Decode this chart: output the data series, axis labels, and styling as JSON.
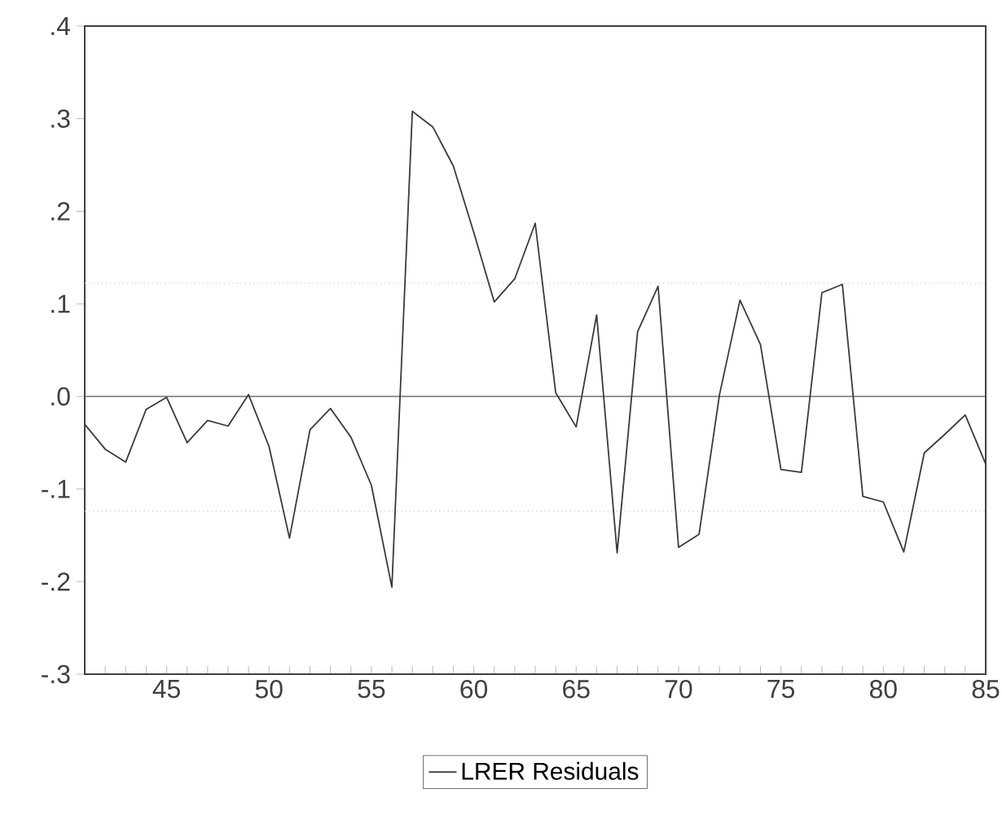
{
  "chart_data": {
    "type": "line",
    "x": [
      41,
      42,
      43,
      44,
      45,
      46,
      47,
      48,
      49,
      50,
      51,
      52,
      53,
      54,
      55,
      56,
      57,
      58,
      59,
      60,
      61,
      62,
      63,
      64,
      65,
      66,
      67,
      68,
      69,
      70,
      71,
      72,
      73,
      74,
      75,
      76,
      77,
      78,
      79,
      80,
      81,
      82,
      83,
      84,
      85
    ],
    "series": [
      {
        "name": "LRER Residuals",
        "color": "#3a3a3a",
        "values": [
          -0.03,
          -0.057,
          -0.071,
          -0.014,
          -0.001,
          -0.05,
          -0.026,
          -0.032,
          0.002,
          -0.054,
          -0.153,
          -0.036,
          -0.013,
          -0.044,
          -0.096,
          -0.206,
          0.308,
          0.291,
          0.249,
          0.177,
          0.102,
          0.127,
          0.187,
          0.004,
          -0.033,
          0.088,
          -0.169,
          0.07,
          0.119,
          -0.163,
          -0.149,
          0.002,
          0.104,
          0.056,
          -0.079,
          -0.082,
          0.112,
          0.121,
          -0.108,
          -0.114,
          -0.168,
          -0.061,
          -0.041,
          -0.02,
          -0.073
        ]
      }
    ],
    "xlim": [
      41,
      85
    ],
    "xticks": [
      {
        "value": 41,
        "label": null
      },
      {
        "value": 42,
        "label": null
      },
      {
        "value": 43,
        "label": null
      },
      {
        "value": 44,
        "label": null
      },
      45,
      {
        "value": 46,
        "label": null
      },
      {
        "value": 47,
        "label": null
      },
      {
        "value": 48,
        "label": null
      },
      {
        "value": 49,
        "label": null
      },
      50,
      {
        "value": 51,
        "label": null
      },
      {
        "value": 52,
        "label": null
      },
      {
        "value": 53,
        "label": null
      },
      {
        "value": 54,
        "label": null
      },
      55,
      {
        "value": 56,
        "label": null
      },
      {
        "value": 57,
        "label": null
      },
      {
        "value": 58,
        "label": null
      },
      {
        "value": 59,
        "label": null
      },
      60,
      {
        "value": 61,
        "label": null
      },
      {
        "value": 62,
        "label": null
      },
      {
        "value": 63,
        "label": null
      },
      {
        "value": 64,
        "label": null
      },
      65,
      {
        "value": 66,
        "label": null
      },
      {
        "value": 67,
        "label": null
      },
      {
        "value": 68,
        "label": null
      },
      {
        "value": 69,
        "label": null
      },
      70,
      {
        "value": 71,
        "label": null
      },
      {
        "value": 72,
        "label": null
      },
      {
        "value": 73,
        "label": null
      },
      {
        "value": 74,
        "label": null
      },
      75,
      {
        "value": 76,
        "label": null
      },
      {
        "value": 77,
        "label": null
      },
      {
        "value": 78,
        "label": null
      },
      {
        "value": 79,
        "label": null
      },
      80,
      {
        "value": 81,
        "label": null
      },
      {
        "value": 82,
        "label": null
      },
      {
        "value": 83,
        "label": null
      },
      {
        "value": 84,
        "label": null
      },
      85
    ],
    "ylim": [
      -0.3,
      0.4
    ],
    "yticks": [
      {
        "value": -0.3,
        "label": "-.3"
      },
      {
        "value": -0.2,
        "label": "-.2"
      },
      {
        "value": -0.1,
        "label": "-.1"
      },
      {
        "value": 0,
        "label": ".0"
      },
      {
        "value": 0.1,
        "label": ".1"
      },
      {
        "value": 0.2,
        "label": ".2"
      },
      {
        "value": 0.3,
        "label": ".3"
      },
      {
        "value": 0.4,
        "label": ".4"
      }
    ],
    "ref_lines": [
      {
        "axis": "y",
        "value": 0,
        "color": "#555555",
        "line_style": "solid"
      },
      {
        "axis": "y",
        "value": 0.122,
        "color": "#c8c8c8",
        "line_style": "dotted"
      },
      {
        "axis": "y",
        "value": -0.124,
        "color": "#c8c8c8",
        "line_style": "dotted"
      }
    ],
    "legend": "bottom",
    "marker": "none",
    "line_style": "solid",
    "grid": false
  }
}
